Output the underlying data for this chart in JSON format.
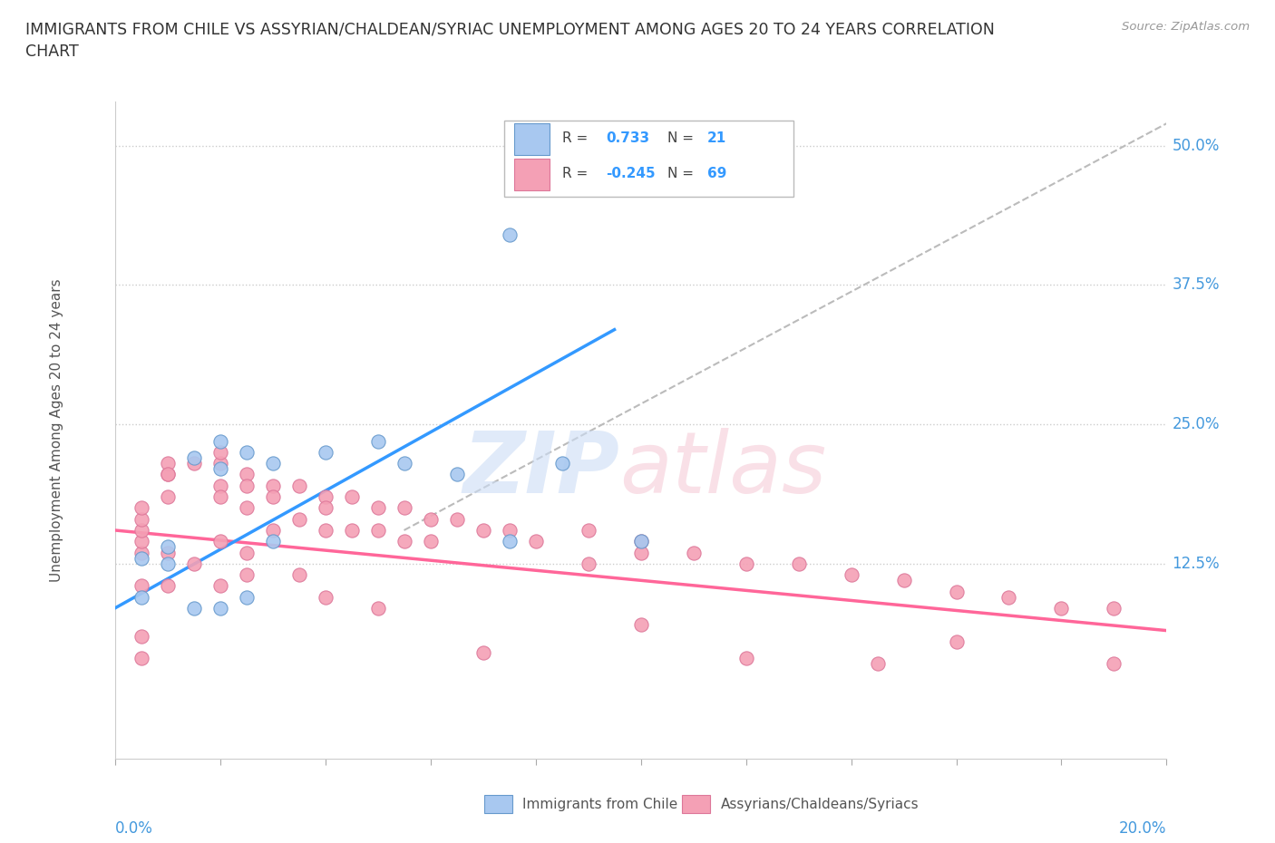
{
  "title_line1": "IMMIGRANTS FROM CHILE VS ASSYRIAN/CHALDEAN/SYRIAC UNEMPLOYMENT AMONG AGES 20 TO 24 YEARS CORRELATION",
  "title_line2": "CHART",
  "source": "Source: ZipAtlas.com",
  "ylabel": "Unemployment Among Ages 20 to 24 years",
  "ytick_labels": [
    "12.5%",
    "25.0%",
    "37.5%",
    "50.0%"
  ],
  "ytick_values": [
    0.125,
    0.25,
    0.375,
    0.5
  ],
  "xlim": [
    0.0,
    0.2
  ],
  "ylim": [
    -0.05,
    0.54
  ],
  "color_chile": "#a8c8f0",
  "color_assyrian": "#f4a0b5",
  "color_chile_edge": "#6699cc",
  "color_assyrian_edge": "#dd7799",
  "color_chile_line": "#3399ff",
  "color_assyrian_line": "#ff6699",
  "chile_scatter_x": [
    0.005,
    0.01,
    0.01,
    0.015,
    0.02,
    0.02,
    0.025,
    0.03,
    0.04,
    0.05,
    0.055,
    0.065,
    0.075,
    0.085,
    0.005,
    0.015,
    0.02,
    0.025,
    0.075,
    0.1,
    0.03
  ],
  "chile_scatter_y": [
    0.13,
    0.125,
    0.14,
    0.22,
    0.235,
    0.21,
    0.225,
    0.215,
    0.225,
    0.235,
    0.215,
    0.205,
    0.145,
    0.215,
    0.095,
    0.085,
    0.085,
    0.095,
    0.42,
    0.145,
    0.145
  ],
  "assyrian_scatter_x": [
    0.005,
    0.005,
    0.005,
    0.005,
    0.005,
    0.01,
    0.01,
    0.01,
    0.01,
    0.01,
    0.015,
    0.015,
    0.02,
    0.02,
    0.02,
    0.02,
    0.02,
    0.025,
    0.025,
    0.025,
    0.025,
    0.03,
    0.03,
    0.03,
    0.035,
    0.035,
    0.04,
    0.04,
    0.04,
    0.045,
    0.045,
    0.05,
    0.05,
    0.055,
    0.055,
    0.06,
    0.06,
    0.065,
    0.07,
    0.075,
    0.08,
    0.09,
    0.09,
    0.1,
    0.1,
    0.11,
    0.12,
    0.13,
    0.14,
    0.15,
    0.16,
    0.17,
    0.18,
    0.19,
    0.005,
    0.01,
    0.02,
    0.025,
    0.035,
    0.04,
    0.05,
    0.07,
    0.1,
    0.12,
    0.145,
    0.16,
    0.19,
    0.005,
    0.005
  ],
  "assyrian_scatter_y": [
    0.135,
    0.145,
    0.155,
    0.165,
    0.175,
    0.185,
    0.205,
    0.215,
    0.205,
    0.135,
    0.215,
    0.125,
    0.215,
    0.225,
    0.195,
    0.185,
    0.145,
    0.205,
    0.195,
    0.175,
    0.135,
    0.195,
    0.185,
    0.155,
    0.195,
    0.165,
    0.185,
    0.175,
    0.155,
    0.185,
    0.155,
    0.175,
    0.155,
    0.175,
    0.145,
    0.165,
    0.145,
    0.165,
    0.155,
    0.155,
    0.145,
    0.155,
    0.125,
    0.145,
    0.135,
    0.135,
    0.125,
    0.125,
    0.115,
    0.11,
    0.1,
    0.095,
    0.085,
    0.085,
    0.105,
    0.105,
    0.105,
    0.115,
    0.115,
    0.095,
    0.085,
    0.045,
    0.07,
    0.04,
    0.035,
    0.055,
    0.035,
    0.06,
    0.04
  ],
  "chile_line_x": [
    0.0,
    0.095
  ],
  "chile_line_y": [
    0.085,
    0.335
  ],
  "assyrian_line_x": [
    0.0,
    0.2
  ],
  "assyrian_line_y": [
    0.155,
    0.065
  ],
  "trendline_x": [
    0.055,
    0.2
  ],
  "trendline_y": [
    0.155,
    0.52
  ],
  "legend_box_title1": "R =  0.733   N = 21",
  "legend_box_title2": "R = -0.245   N = 69"
}
